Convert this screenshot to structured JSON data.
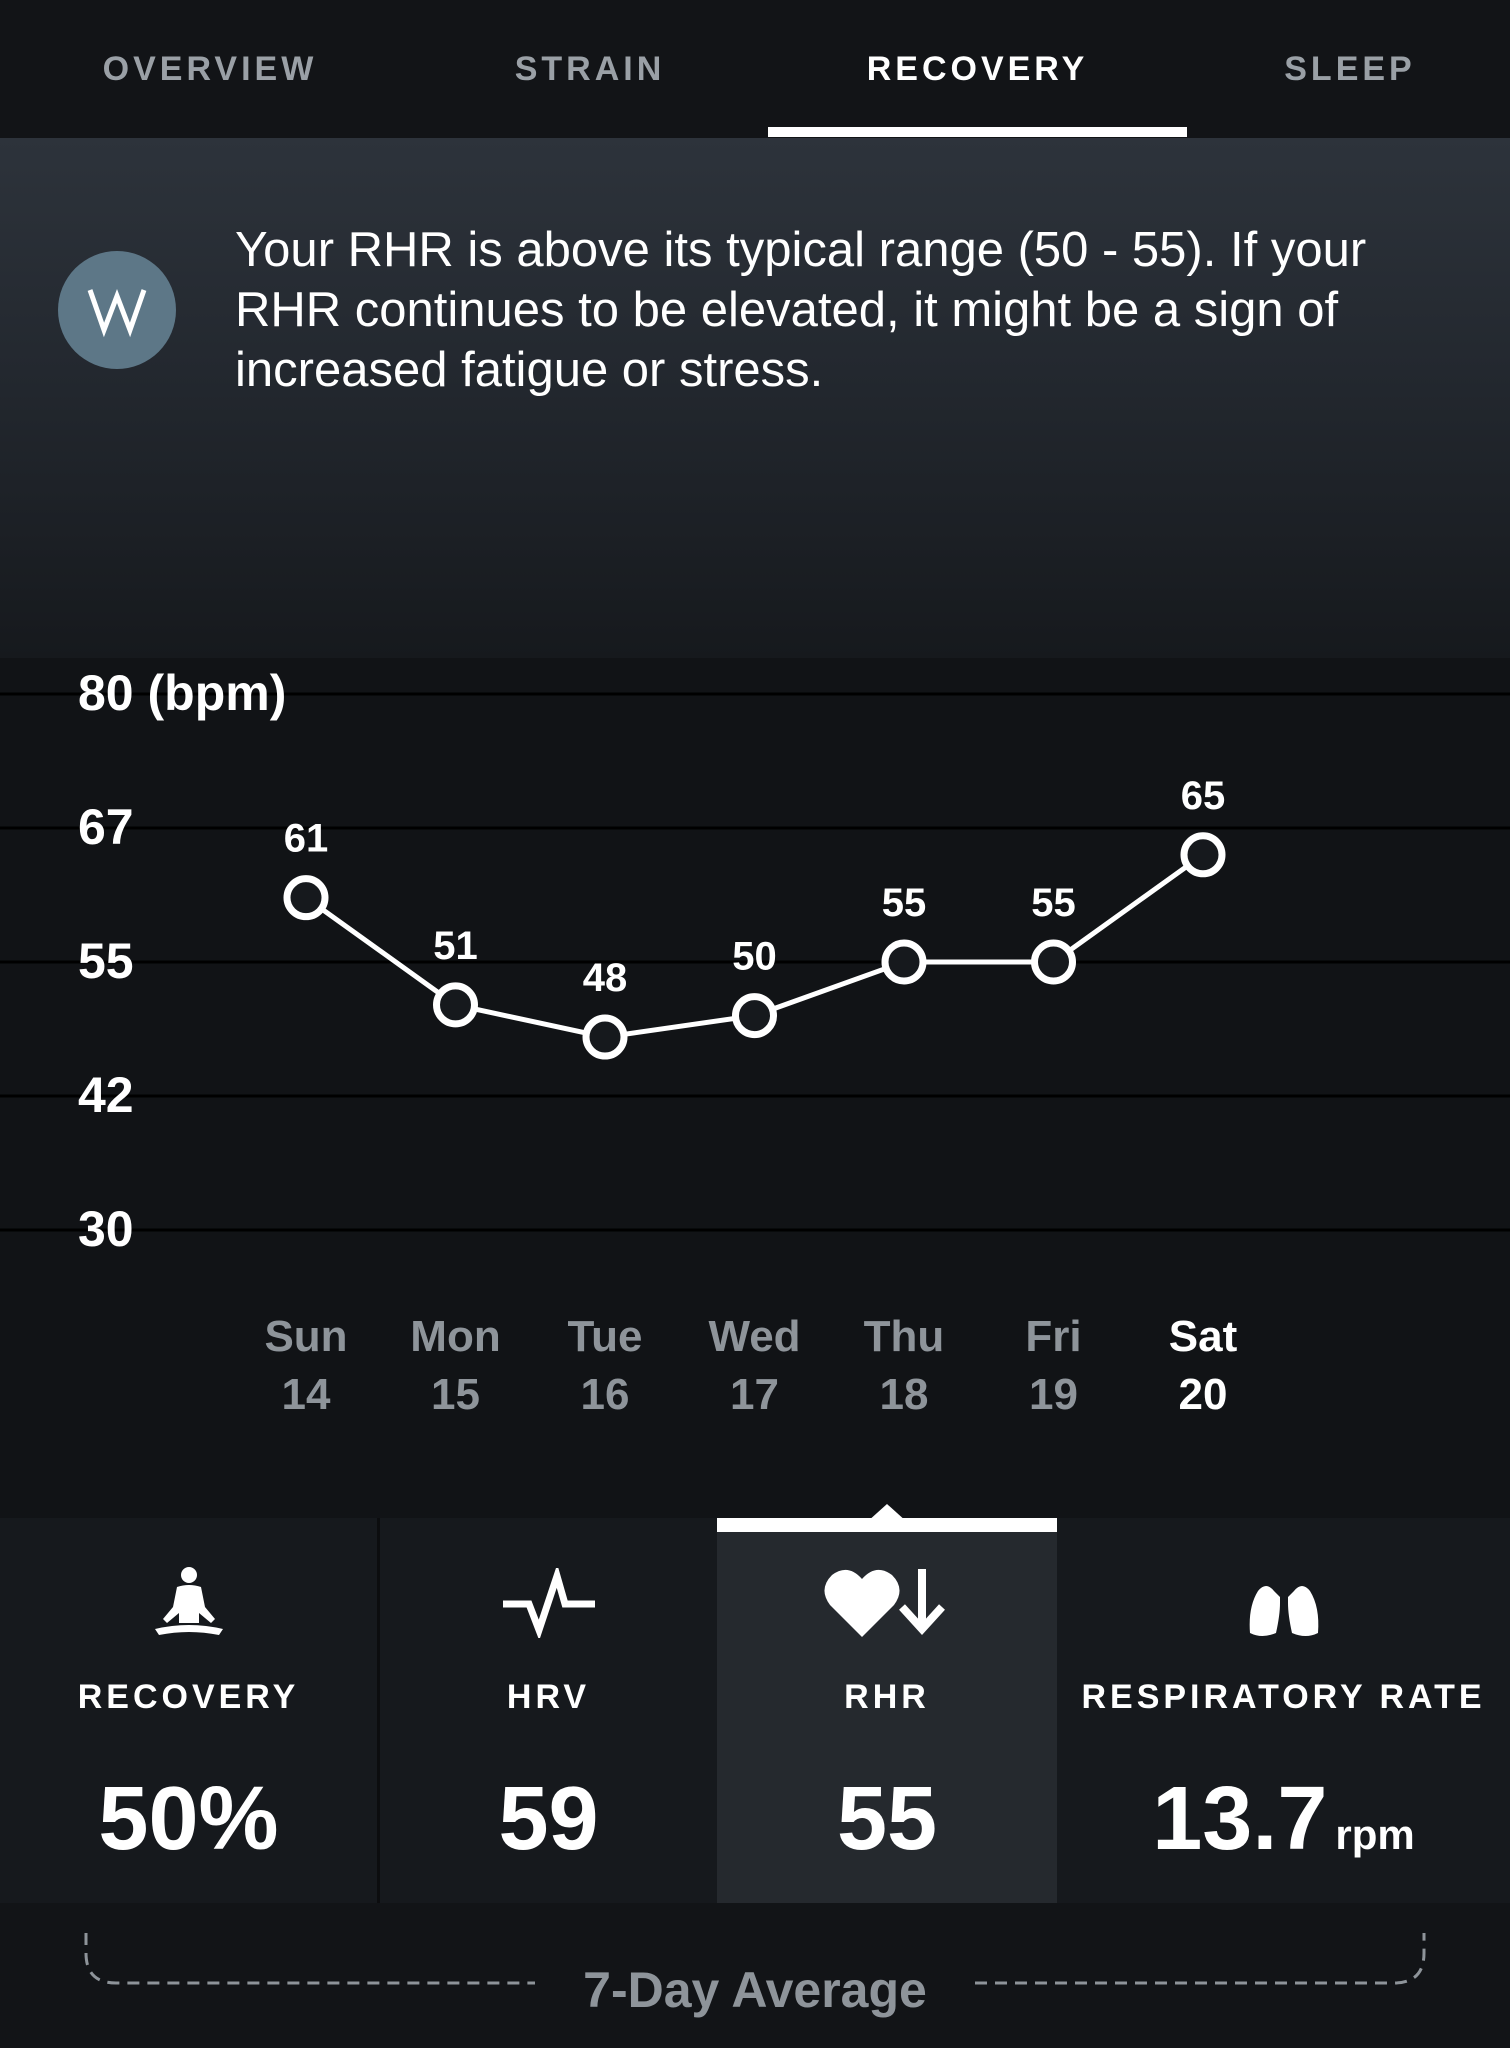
{
  "tabs": [
    {
      "label": "OVERVIEW"
    },
    {
      "label": "STRAIN"
    },
    {
      "label": "RECOVERY"
    },
    {
      "label": "SLEEP"
    }
  ],
  "active_tab": "RECOVERY",
  "insight": {
    "icon": "whoop-logo-icon",
    "text": "Your RHR is above its typical range (50 - 55). If your RHR continues to be elevated, it might be a sign of increased fatigue or stress."
  },
  "chart_data": {
    "type": "line",
    "y_axis_title": "80 (bpm)",
    "y_ticks": [
      {
        "value": 80,
        "label": "80 (bpm)"
      },
      {
        "value": 67,
        "label": "67"
      },
      {
        "value": 55,
        "label": "55"
      },
      {
        "value": 42,
        "label": "42"
      },
      {
        "value": 30,
        "label": "30"
      }
    ],
    "ylim": [
      30,
      80
    ],
    "categories": [
      {
        "day": "Sun",
        "date": "14"
      },
      {
        "day": "Mon",
        "date": "15"
      },
      {
        "day": "Tue",
        "date": "16"
      },
      {
        "day": "Wed",
        "date": "17"
      },
      {
        "day": "Thu",
        "date": "18"
      },
      {
        "day": "Fri",
        "date": "19"
      },
      {
        "day": "Sat",
        "date": "20"
      }
    ],
    "values": [
      61,
      51,
      48,
      50,
      55,
      55,
      65
    ],
    "highlight_index": 6,
    "grid": true
  },
  "metrics": [
    {
      "icon": "meditation-icon",
      "label": "RECOVERY",
      "value": "50%",
      "unit": ""
    },
    {
      "icon": "hrv-pulse-icon",
      "label": "HRV",
      "value": "59",
      "unit": ""
    },
    {
      "icon": "heart-down-arrow-icon",
      "label": "RHR",
      "value": "55",
      "unit": ""
    },
    {
      "icon": "lungs-icon",
      "label": "RESPIRATORY RATE",
      "value": "13.7",
      "unit": "rpm"
    }
  ],
  "active_metric": "RHR",
  "footer": {
    "label": "7-Day Average"
  }
}
